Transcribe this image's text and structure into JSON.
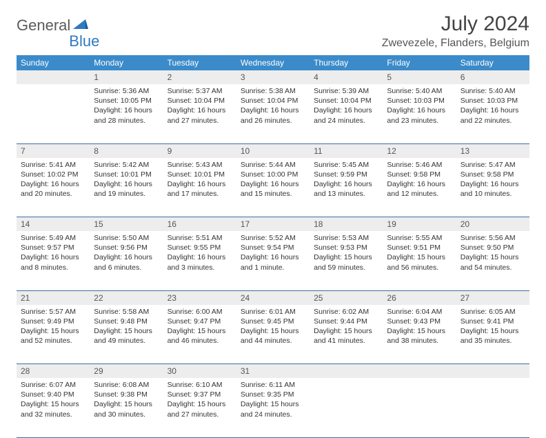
{
  "logo": {
    "part1": "General",
    "part2": "Blue"
  },
  "title": "July 2024",
  "location": "Zwevezele, Flanders, Belgium",
  "colors": {
    "header_bg": "#3b8bca",
    "header_text": "#ffffff",
    "daynum_bg": "#ededed",
    "border": "#3b6ea0",
    "logo_gray": "#5a5a5a",
    "logo_blue": "#2f7abf"
  },
  "day_headers": [
    "Sunday",
    "Monday",
    "Tuesday",
    "Wednesday",
    "Thursday",
    "Friday",
    "Saturday"
  ],
  "weeks": [
    {
      "nums": [
        "",
        "1",
        "2",
        "3",
        "4",
        "5",
        "6"
      ],
      "cells": [
        null,
        {
          "sunrise": "Sunrise: 5:36 AM",
          "sunset": "Sunset: 10:05 PM",
          "day1": "Daylight: 16 hours",
          "day2": "and 28 minutes."
        },
        {
          "sunrise": "Sunrise: 5:37 AM",
          "sunset": "Sunset: 10:04 PM",
          "day1": "Daylight: 16 hours",
          "day2": "and 27 minutes."
        },
        {
          "sunrise": "Sunrise: 5:38 AM",
          "sunset": "Sunset: 10:04 PM",
          "day1": "Daylight: 16 hours",
          "day2": "and 26 minutes."
        },
        {
          "sunrise": "Sunrise: 5:39 AM",
          "sunset": "Sunset: 10:04 PM",
          "day1": "Daylight: 16 hours",
          "day2": "and 24 minutes."
        },
        {
          "sunrise": "Sunrise: 5:40 AM",
          "sunset": "Sunset: 10:03 PM",
          "day1": "Daylight: 16 hours",
          "day2": "and 23 minutes."
        },
        {
          "sunrise": "Sunrise: 5:40 AM",
          "sunset": "Sunset: 10:03 PM",
          "day1": "Daylight: 16 hours",
          "day2": "and 22 minutes."
        }
      ]
    },
    {
      "nums": [
        "7",
        "8",
        "9",
        "10",
        "11",
        "12",
        "13"
      ],
      "cells": [
        {
          "sunrise": "Sunrise: 5:41 AM",
          "sunset": "Sunset: 10:02 PM",
          "day1": "Daylight: 16 hours",
          "day2": "and 20 minutes."
        },
        {
          "sunrise": "Sunrise: 5:42 AM",
          "sunset": "Sunset: 10:01 PM",
          "day1": "Daylight: 16 hours",
          "day2": "and 19 minutes."
        },
        {
          "sunrise": "Sunrise: 5:43 AM",
          "sunset": "Sunset: 10:01 PM",
          "day1": "Daylight: 16 hours",
          "day2": "and 17 minutes."
        },
        {
          "sunrise": "Sunrise: 5:44 AM",
          "sunset": "Sunset: 10:00 PM",
          "day1": "Daylight: 16 hours",
          "day2": "and 15 minutes."
        },
        {
          "sunrise": "Sunrise: 5:45 AM",
          "sunset": "Sunset: 9:59 PM",
          "day1": "Daylight: 16 hours",
          "day2": "and 13 minutes."
        },
        {
          "sunrise": "Sunrise: 5:46 AM",
          "sunset": "Sunset: 9:58 PM",
          "day1": "Daylight: 16 hours",
          "day2": "and 12 minutes."
        },
        {
          "sunrise": "Sunrise: 5:47 AM",
          "sunset": "Sunset: 9:58 PM",
          "day1": "Daylight: 16 hours",
          "day2": "and 10 minutes."
        }
      ]
    },
    {
      "nums": [
        "14",
        "15",
        "16",
        "17",
        "18",
        "19",
        "20"
      ],
      "cells": [
        {
          "sunrise": "Sunrise: 5:49 AM",
          "sunset": "Sunset: 9:57 PM",
          "day1": "Daylight: 16 hours",
          "day2": "and 8 minutes."
        },
        {
          "sunrise": "Sunrise: 5:50 AM",
          "sunset": "Sunset: 9:56 PM",
          "day1": "Daylight: 16 hours",
          "day2": "and 6 minutes."
        },
        {
          "sunrise": "Sunrise: 5:51 AM",
          "sunset": "Sunset: 9:55 PM",
          "day1": "Daylight: 16 hours",
          "day2": "and 3 minutes."
        },
        {
          "sunrise": "Sunrise: 5:52 AM",
          "sunset": "Sunset: 9:54 PM",
          "day1": "Daylight: 16 hours",
          "day2": "and 1 minute."
        },
        {
          "sunrise": "Sunrise: 5:53 AM",
          "sunset": "Sunset: 9:53 PM",
          "day1": "Daylight: 15 hours",
          "day2": "and 59 minutes."
        },
        {
          "sunrise": "Sunrise: 5:55 AM",
          "sunset": "Sunset: 9:51 PM",
          "day1": "Daylight: 15 hours",
          "day2": "and 56 minutes."
        },
        {
          "sunrise": "Sunrise: 5:56 AM",
          "sunset": "Sunset: 9:50 PM",
          "day1": "Daylight: 15 hours",
          "day2": "and 54 minutes."
        }
      ]
    },
    {
      "nums": [
        "21",
        "22",
        "23",
        "24",
        "25",
        "26",
        "27"
      ],
      "cells": [
        {
          "sunrise": "Sunrise: 5:57 AM",
          "sunset": "Sunset: 9:49 PM",
          "day1": "Daylight: 15 hours",
          "day2": "and 52 minutes."
        },
        {
          "sunrise": "Sunrise: 5:58 AM",
          "sunset": "Sunset: 9:48 PM",
          "day1": "Daylight: 15 hours",
          "day2": "and 49 minutes."
        },
        {
          "sunrise": "Sunrise: 6:00 AM",
          "sunset": "Sunset: 9:47 PM",
          "day1": "Daylight: 15 hours",
          "day2": "and 46 minutes."
        },
        {
          "sunrise": "Sunrise: 6:01 AM",
          "sunset": "Sunset: 9:45 PM",
          "day1": "Daylight: 15 hours",
          "day2": "and 44 minutes."
        },
        {
          "sunrise": "Sunrise: 6:02 AM",
          "sunset": "Sunset: 9:44 PM",
          "day1": "Daylight: 15 hours",
          "day2": "and 41 minutes."
        },
        {
          "sunrise": "Sunrise: 6:04 AM",
          "sunset": "Sunset: 9:43 PM",
          "day1": "Daylight: 15 hours",
          "day2": "and 38 minutes."
        },
        {
          "sunrise": "Sunrise: 6:05 AM",
          "sunset": "Sunset: 9:41 PM",
          "day1": "Daylight: 15 hours",
          "day2": "and 35 minutes."
        }
      ]
    },
    {
      "nums": [
        "28",
        "29",
        "30",
        "31",
        "",
        "",
        ""
      ],
      "cells": [
        {
          "sunrise": "Sunrise: 6:07 AM",
          "sunset": "Sunset: 9:40 PM",
          "day1": "Daylight: 15 hours",
          "day2": "and 32 minutes."
        },
        {
          "sunrise": "Sunrise: 6:08 AM",
          "sunset": "Sunset: 9:38 PM",
          "day1": "Daylight: 15 hours",
          "day2": "and 30 minutes."
        },
        {
          "sunrise": "Sunrise: 6:10 AM",
          "sunset": "Sunset: 9:37 PM",
          "day1": "Daylight: 15 hours",
          "day2": "and 27 minutes."
        },
        {
          "sunrise": "Sunrise: 6:11 AM",
          "sunset": "Sunset: 9:35 PM",
          "day1": "Daylight: 15 hours",
          "day2": "and 24 minutes."
        },
        null,
        null,
        null
      ]
    }
  ]
}
